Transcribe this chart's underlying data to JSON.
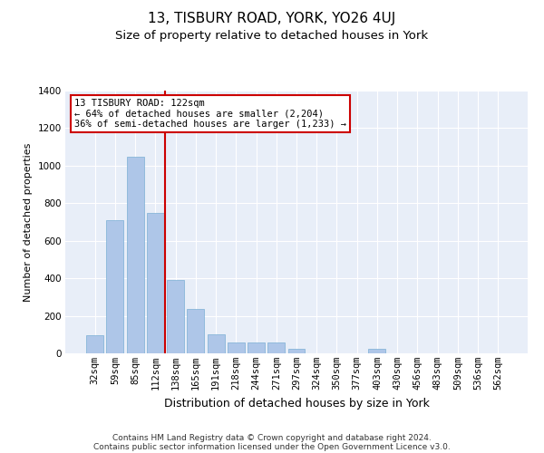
{
  "title": "13, TISBURY ROAD, YORK, YO26 4UJ",
  "subtitle": "Size of property relative to detached houses in York",
  "xlabel": "Distribution of detached houses by size in York",
  "ylabel": "Number of detached properties",
  "footer_line1": "Contains HM Land Registry data © Crown copyright and database right 2024.",
  "footer_line2": "Contains public sector information licensed under the Open Government Licence v3.0.",
  "annotation_title": "13 TISBURY ROAD: 122sqm",
  "annotation_line2": "← 64% of detached houses are smaller (2,204)",
  "annotation_line3": "36% of semi-detached houses are larger (1,233) →",
  "bar_labels": [
    "32sqm",
    "59sqm",
    "85sqm",
    "112sqm",
    "138sqm",
    "165sqm",
    "191sqm",
    "218sqm",
    "244sqm",
    "271sqm",
    "297sqm",
    "324sqm",
    "350sqm",
    "377sqm",
    "403sqm",
    "430sqm",
    "456sqm",
    "483sqm",
    "509sqm",
    "536sqm",
    "562sqm"
  ],
  "bar_values": [
    95,
    710,
    1050,
    750,
    390,
    235,
    100,
    60,
    60,
    60,
    25,
    0,
    0,
    0,
    25,
    0,
    0,
    0,
    0,
    0,
    0
  ],
  "bar_color": "#aec6e8",
  "bar_edge_color": "#7aafd4",
  "vline_x": 3.5,
  "vline_color": "#cc0000",
  "background_color": "#e8eef8",
  "ylim": [
    0,
    1400
  ],
  "yticks": [
    0,
    200,
    400,
    600,
    800,
    1000,
    1200,
    1400
  ],
  "annotation_box_color": "#cc0000",
  "title_fontsize": 11,
  "subtitle_fontsize": 9.5,
  "xlabel_fontsize": 9,
  "ylabel_fontsize": 8,
  "tick_fontsize": 7.5,
  "footer_fontsize": 6.5,
  "annotation_fontsize": 7.5
}
